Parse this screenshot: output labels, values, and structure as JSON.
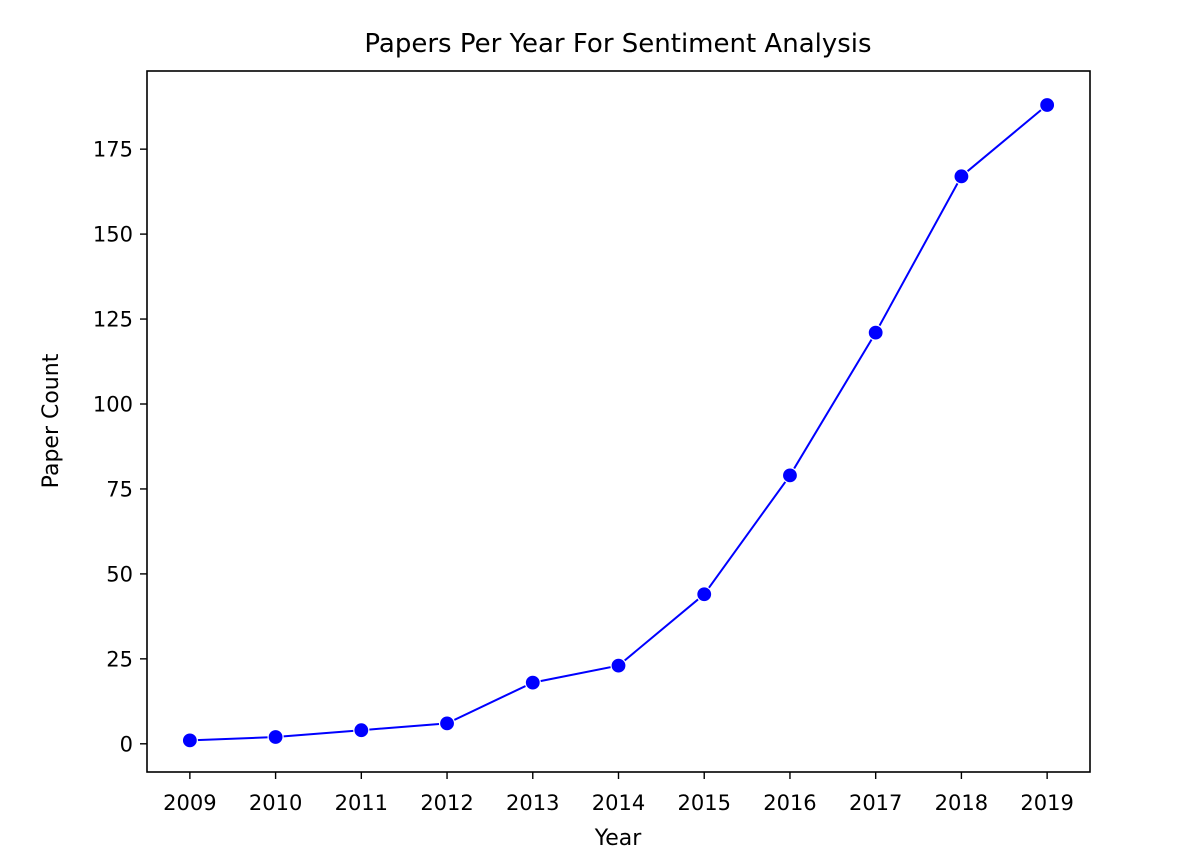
{
  "chart_data": {
    "type": "line",
    "title": "Papers Per Year For Sentiment Analysis",
    "xlabel": "Year",
    "ylabel": "Paper Count",
    "x": [
      2009,
      2010,
      2011,
      2012,
      2013,
      2014,
      2015,
      2016,
      2017,
      2018,
      2019
    ],
    "x_tick_labels": [
      "2009",
      "2010",
      "2011",
      "2012",
      "2013",
      "2014",
      "2015",
      "2016",
      "2017",
      "2018",
      "2019"
    ],
    "y_ticks": [
      0,
      25,
      50,
      75,
      100,
      125,
      150,
      175
    ],
    "y_tick_labels": [
      "0",
      "25",
      "50",
      "75",
      "100",
      "125",
      "150",
      "175"
    ],
    "xlim": [
      2008.5,
      2019.5
    ],
    "ylim": [
      -8.3,
      198
    ],
    "grid": false,
    "series": [
      {
        "color": "#0000ff",
        "marker": "circle",
        "values": [
          1,
          2,
          4,
          6,
          18,
          23,
          44,
          79,
          121,
          167,
          188
        ]
      }
    ]
  }
}
